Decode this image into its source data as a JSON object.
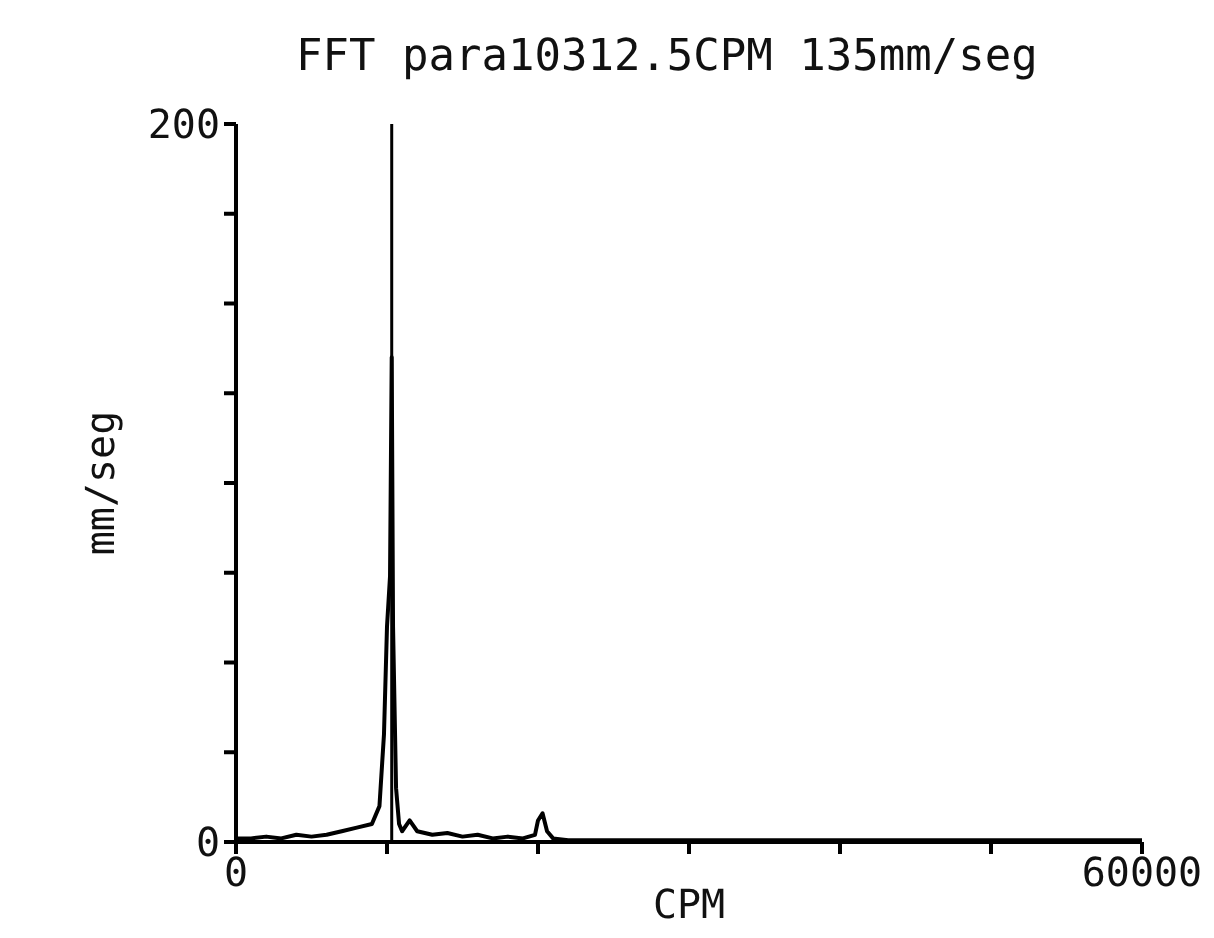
{
  "chart_data": {
    "type": "line",
    "title": "FFT para10312.5CPM  135mm/seg",
    "xlabel": "CPM",
    "ylabel": "mm/seg",
    "xlim": [
      0,
      60000
    ],
    "xticks": [
      0,
      {
        "value": 10000,
        "label": null
      },
      {
        "value": 20000,
        "label": null
      },
      {
        "value": 30000,
        "label": null
      },
      {
        "value": 40000,
        "label": null
      },
      {
        "value": 50000,
        "label": null
      },
      60000
    ],
    "ylim": [
      0,
      200
    ],
    "yticks": [
      0,
      {
        "value": 25,
        "label": null
      },
      {
        "value": 50,
        "label": null
      },
      {
        "value": 75,
        "label": null
      },
      {
        "value": 100,
        "label": null
      },
      {
        "value": 125,
        "label": null
      },
      {
        "value": 150,
        "label": null
      },
      {
        "value": 175,
        "label": null
      },
      200
    ],
    "x": [
      0,
      1000,
      2000,
      3000,
      4000,
      5000,
      6000,
      7000,
      8000,
      9000,
      9500,
      9800,
      10000,
      10200,
      10312.5,
      10400,
      10600,
      10800,
      11000,
      11500,
      12000,
      13000,
      14000,
      15000,
      16000,
      17000,
      18000,
      19000,
      19800,
      20000,
      20300,
      20600,
      21000,
      22000,
      25000,
      30000,
      35000,
      40000,
      45000,
      50000,
      55000,
      60000
    ],
    "series": [
      {
        "color": "#000000",
        "values": [
          1,
          1,
          1.5,
          1,
          2,
          1.5,
          2,
          3,
          4,
          5,
          10,
          30,
          60,
          74,
          135,
          60,
          15,
          5,
          3,
          6,
          3,
          2,
          2.5,
          1.5,
          2,
          1,
          1.5,
          1,
          2,
          6,
          8,
          3,
          1,
          0.5,
          0.5,
          0.5,
          0.5,
          0.5,
          0.5,
          0.5,
          0.5,
          0.5
        ]
      }
    ],
    "ref_lines": [
      {
        "axis": "x",
        "value": 10312.5,
        "color": "#000000"
      }
    ],
    "marker": "none",
    "line_style": "solid"
  }
}
